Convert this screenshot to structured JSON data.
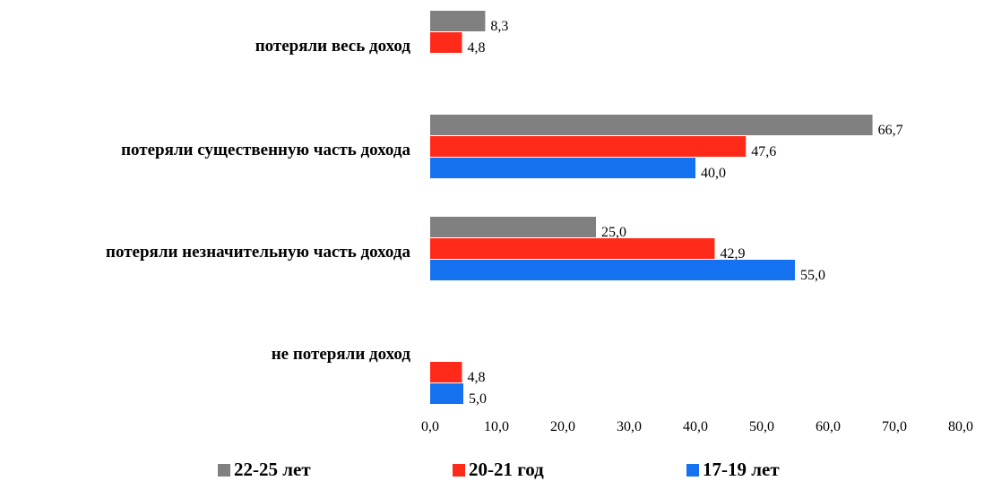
{
  "chart_data": {
    "type": "bar",
    "orientation": "horizontal",
    "categories": [
      "потеряли весь доход",
      "потеряли существенную часть дохода",
      "потеряли незначительную часть дохода",
      "не потеряли доход"
    ],
    "series": [
      {
        "name": "22-25 лет",
        "color": "#808080",
        "values": [
          8.3,
          66.7,
          25.0,
          null
        ],
        "labels": [
          "8,3",
          "66,7",
          "25,0",
          null
        ]
      },
      {
        "name": "20-21 год",
        "color": "#ff2a1a",
        "values": [
          4.8,
          47.6,
          42.9,
          4.8
        ],
        "labels": [
          "4,8",
          "47,6",
          "42,9",
          "4,8"
        ]
      },
      {
        "name": "17-19 лет",
        "color": "#1472f0",
        "values": [
          null,
          40.0,
          55.0,
          5.0
        ],
        "labels": [
          null,
          "40,0",
          "55,0",
          "5,0"
        ]
      }
    ],
    "xlim": [
      0,
      80
    ],
    "xticks": [
      0,
      10,
      20,
      30,
      40,
      50,
      60,
      70,
      80
    ],
    "xtick_labels": [
      "0,0",
      "10,0",
      "20,0",
      "30,0",
      "40,0",
      "50,0",
      "60,0",
      "70,0",
      "80,0"
    ],
    "grid": false,
    "legend_position": "bottom"
  }
}
